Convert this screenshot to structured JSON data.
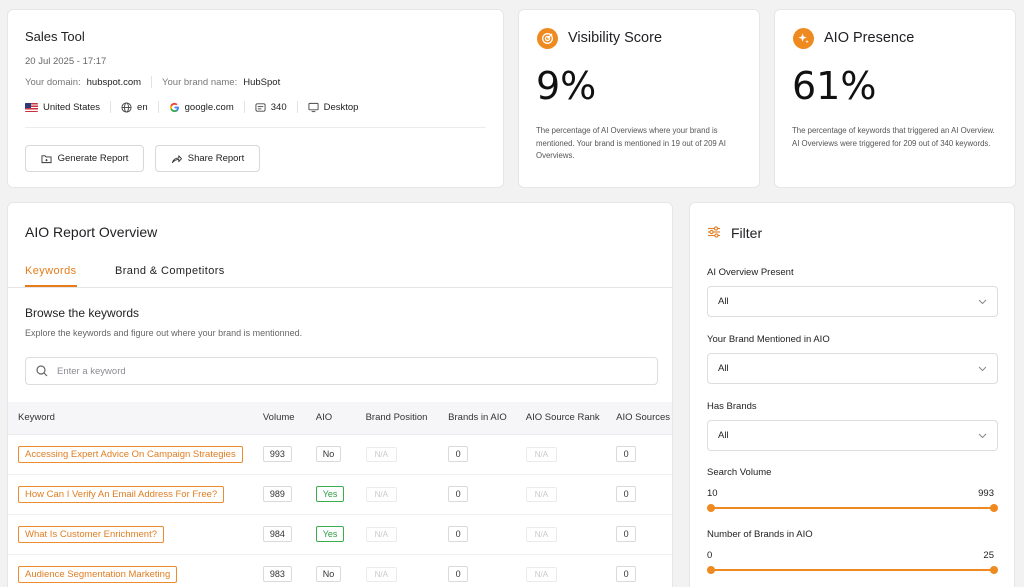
{
  "header": {
    "title": "Sales Tool",
    "date": "20 Jul 2025 - 17:17",
    "domain_label": "Your domain:",
    "domain": "hubspot.com",
    "brand_label": "Your brand name:",
    "brand": "HubSpot",
    "country": "United States",
    "language": "en",
    "engine": "google.com",
    "keyword_count": "340",
    "device": "Desktop",
    "generate_label": "Generate Report",
    "share_label": "Share Report"
  },
  "visibility": {
    "title": "Visibility Score",
    "value": "9%",
    "description": "The percentage of AI Overviews where your brand is mentioned. Your brand is mentioned in 19 out of 209 AI Overviews."
  },
  "presence": {
    "title": "AIO Presence",
    "value": "61%",
    "description": "The percentage of keywords that triggered an AI Overview. AI Overviews were triggered for 209 out of 340 keywords."
  },
  "report": {
    "title": "AIO Report Overview",
    "tabs": [
      "Keywords",
      "Brand & Competitors"
    ],
    "browse_title": "Browse the keywords",
    "browse_desc": "Explore the keywords and figure out where your brand is mentionned.",
    "search_placeholder": "Enter a keyword",
    "columns": [
      "Keyword",
      "Volume",
      "AIO",
      "Brand Position",
      "Brands in AIO",
      "AIO Source Rank",
      "AIO Sources"
    ],
    "rows": [
      {
        "keyword": "Accessing Expert Advice On Campaign Strategies",
        "volume": "993",
        "aio": "No",
        "brand_position": "N/A",
        "brands": "0",
        "source_rank": "N/A",
        "sources": "0"
      },
      {
        "keyword": "How Can I Verify An Email Address For Free?",
        "volume": "989",
        "aio": "Yes",
        "brand_position": "N/A",
        "brands": "0",
        "source_rank": "N/A",
        "sources": "0"
      },
      {
        "keyword": "What Is Customer Enrichment?",
        "volume": "984",
        "aio": "Yes",
        "brand_position": "N/A",
        "brands": "0",
        "source_rank": "N/A",
        "sources": "0"
      },
      {
        "keyword": "Audience Segmentation Marketing",
        "volume": "983",
        "aio": "No",
        "brand_position": "N/A",
        "brands": "0",
        "source_rank": "N/A",
        "sources": "0"
      }
    ]
  },
  "filter": {
    "title": "Filter",
    "aio_present_label": "AI Overview Present",
    "aio_present_value": "All",
    "brand_mentioned_label": "Your Brand Mentioned in AIO",
    "brand_mentioned_value": "All",
    "has_brands_label": "Has Brands",
    "has_brands_value": "All",
    "volume_label": "Search Volume",
    "volume_min": "10",
    "volume_max": "993",
    "brands_label": "Number of Brands in AIO",
    "brands_min": "0",
    "brands_max": "25"
  },
  "colors": {
    "accent": "#ee8a1f",
    "yes": "#3aae4f"
  }
}
